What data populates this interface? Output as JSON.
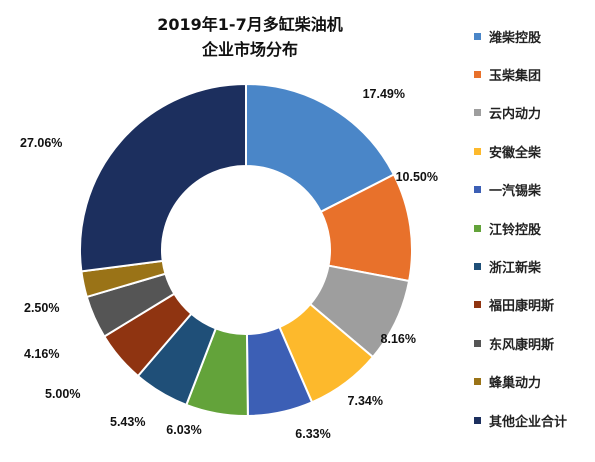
{
  "chart_data": {
    "type": "pie",
    "title": [
      "2019年1-7月多缸柴油机",
      "企业市场分布"
    ],
    "slices": [
      {
        "name": "潍柴控股",
        "value": 17.49,
        "label": "17.49%",
        "color": "#4a86c8"
      },
      {
        "name": "玉柴集团",
        "value": 10.5,
        "label": "10.50%",
        "color": "#e8712b"
      },
      {
        "name": "云内动力",
        "value": 8.16,
        "label": "8.16%",
        "color": "#9e9e9e"
      },
      {
        "name": "安徽全柴",
        "value": 7.34,
        "label": "7.34%",
        "color": "#fdb92c"
      },
      {
        "name": "一汽锡柴",
        "value": 6.33,
        "label": "6.33%",
        "color": "#3c5fb5"
      },
      {
        "name": "江铃控股",
        "value": 6.03,
        "label": "6.03%",
        "color": "#63a33a"
      },
      {
        "name": "浙江新柴",
        "value": 5.43,
        "label": "5.43%",
        "color": "#1f4f78"
      },
      {
        "name": "福田康明斯",
        "value": 5.0,
        "label": "5.00%",
        "color": "#8f3411"
      },
      {
        "name": "东风康明斯",
        "value": 4.16,
        "label": "4.16%",
        "color": "#555555"
      },
      {
        "name": "蜂巢动力",
        "value": 2.5,
        "label": "2.50%",
        "color": "#9a7317"
      },
      {
        "name": "其他企业合计",
        "value": 27.06,
        "label": "27.06%",
        "color": "#1c2f5e"
      }
    ],
    "legend_position": "right",
    "donut": true
  }
}
